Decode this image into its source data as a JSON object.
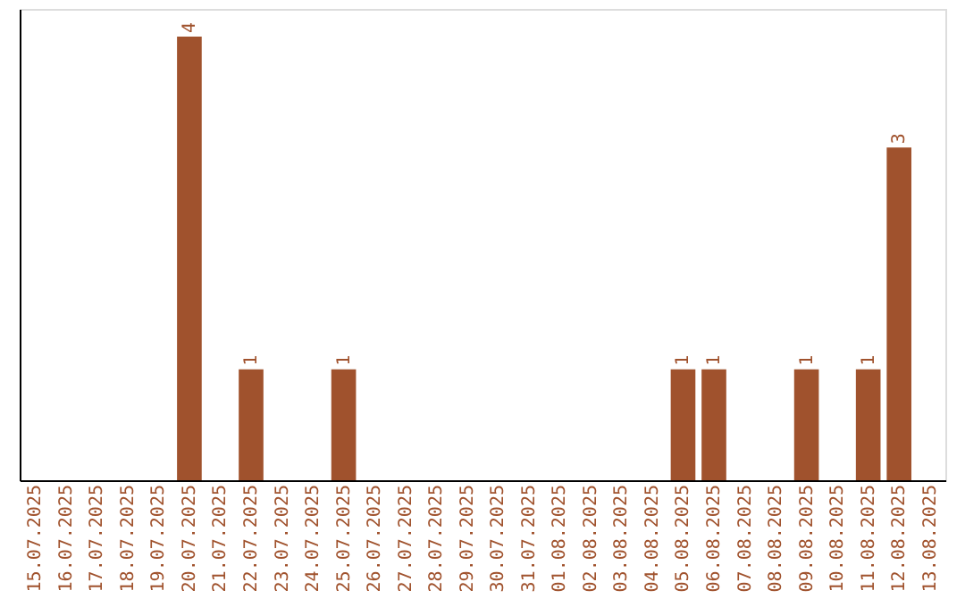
{
  "chart_data": {
    "type": "bar",
    "categories": [
      "15.07.2025",
      "16.07.2025",
      "17.07.2025",
      "18.07.2025",
      "19.07.2025",
      "20.07.2025",
      "21.07.2025",
      "22.07.2025",
      "23.07.2025",
      "24.07.2025",
      "25.07.2025",
      "26.07.2025",
      "27.07.2025",
      "28.07.2025",
      "29.07.2025",
      "30.07.2025",
      "31.07.2025",
      "01.08.2025",
      "02.08.2025",
      "03.08.2025",
      "04.08.2025",
      "05.08.2025",
      "06.08.2025",
      "07.08.2025",
      "08.08.2025",
      "09.08.2025",
      "10.08.2025",
      "11.08.2025",
      "12.08.2025",
      "13.08.2025"
    ],
    "values": [
      0,
      0,
      0,
      0,
      0,
      4,
      0,
      1,
      0,
      0,
      1,
      0,
      0,
      0,
      0,
      0,
      0,
      0,
      0,
      0,
      0,
      1,
      1,
      0,
      0,
      1,
      0,
      1,
      3,
      0
    ],
    "value_labels": [
      null,
      null,
      null,
      null,
      null,
      "4",
      null,
      "1",
      null,
      null,
      "1",
      null,
      null,
      null,
      null,
      null,
      null,
      null,
      null,
      null,
      null,
      "1",
      "1",
      null,
      null,
      "1",
      null,
      "1",
      "3",
      null
    ],
    "color": "#a0522d",
    "ylim": [
      0,
      4.25
    ],
    "tick_labels": "x",
    "grid": false
  }
}
